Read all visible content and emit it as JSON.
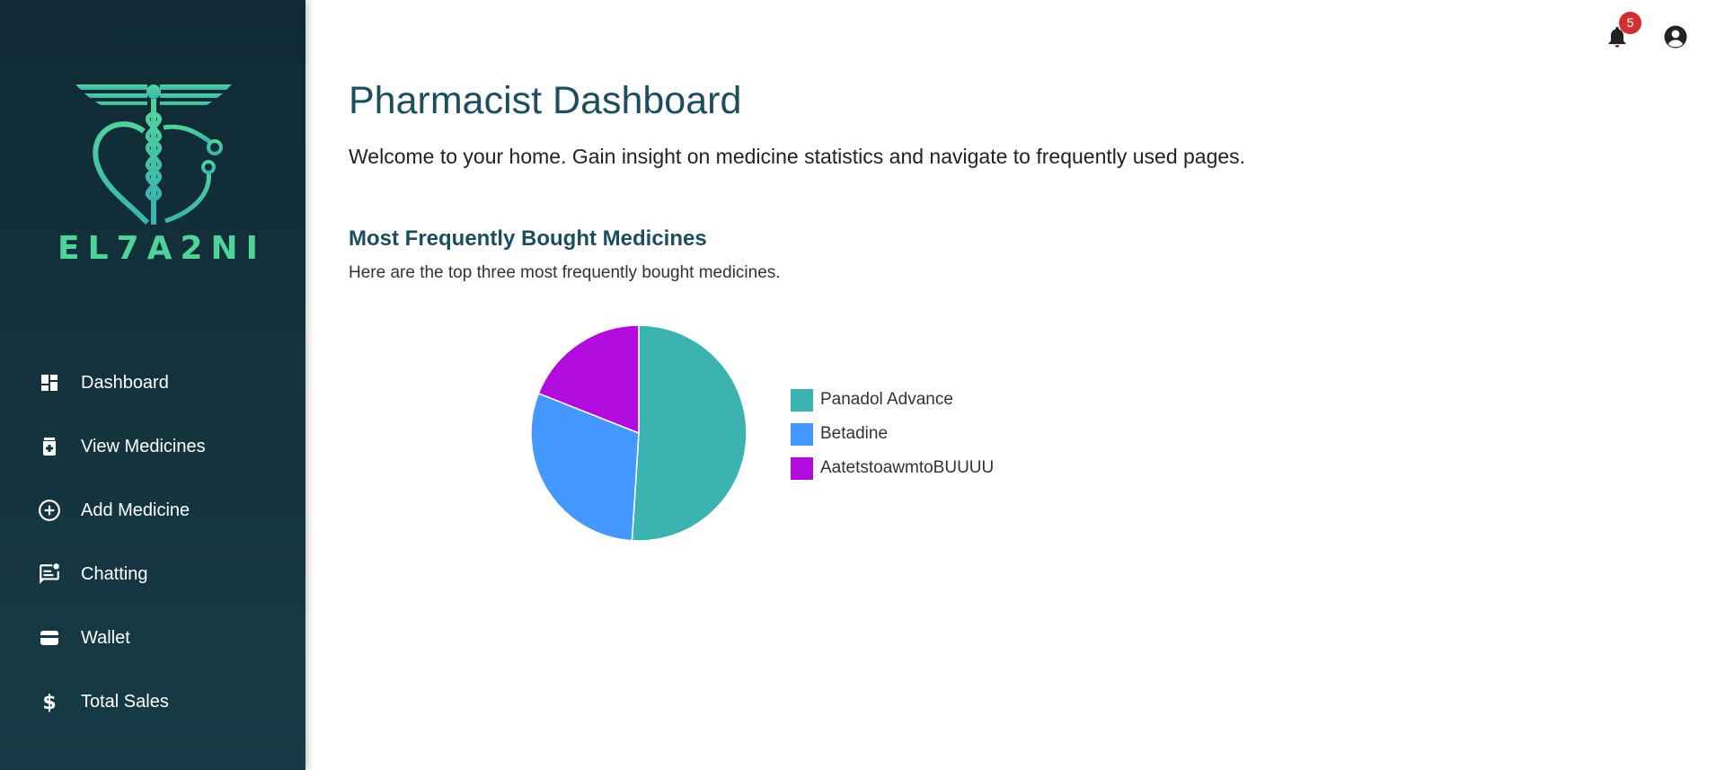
{
  "brand": {
    "logo_text": "EL7A2NI"
  },
  "sidebar": {
    "items": [
      {
        "label": "Dashboard",
        "icon": "dashboard-icon"
      },
      {
        "label": "View Medicines",
        "icon": "medication-icon"
      },
      {
        "label": "Add Medicine",
        "icon": "add-circle-icon"
      },
      {
        "label": "Chatting",
        "icon": "chat-icon"
      },
      {
        "label": "Wallet",
        "icon": "wallet-icon"
      },
      {
        "label": "Total Sales",
        "icon": "dollar-icon"
      }
    ]
  },
  "topbar": {
    "notification_count": "5"
  },
  "main": {
    "title": "Pharmacist Dashboard",
    "subtitle": "Welcome to your home. Gain insight on medicine statistics and navigate to frequently used pages.",
    "section_title": "Most Frequently Bought Medicines",
    "section_subtitle": "Here are the top three most frequently bought medicines."
  },
  "colors": {
    "sidebar_top": "#0f2a34",
    "sidebar_bottom": "#173b46",
    "accent_green": "#4fd39a",
    "title_blue": "#1d4e5f",
    "badge_red": "#d32f2f"
  },
  "chart_data": {
    "type": "pie",
    "categories": [
      "Panadol Advance",
      "Betadine",
      "AatetstoawmtoBUUUU"
    ],
    "values": [
      51,
      30,
      19
    ],
    "colors": [
      "#3bb3b0",
      "#4498ff",
      "#b20bdd"
    ],
    "legend_position": "right"
  }
}
